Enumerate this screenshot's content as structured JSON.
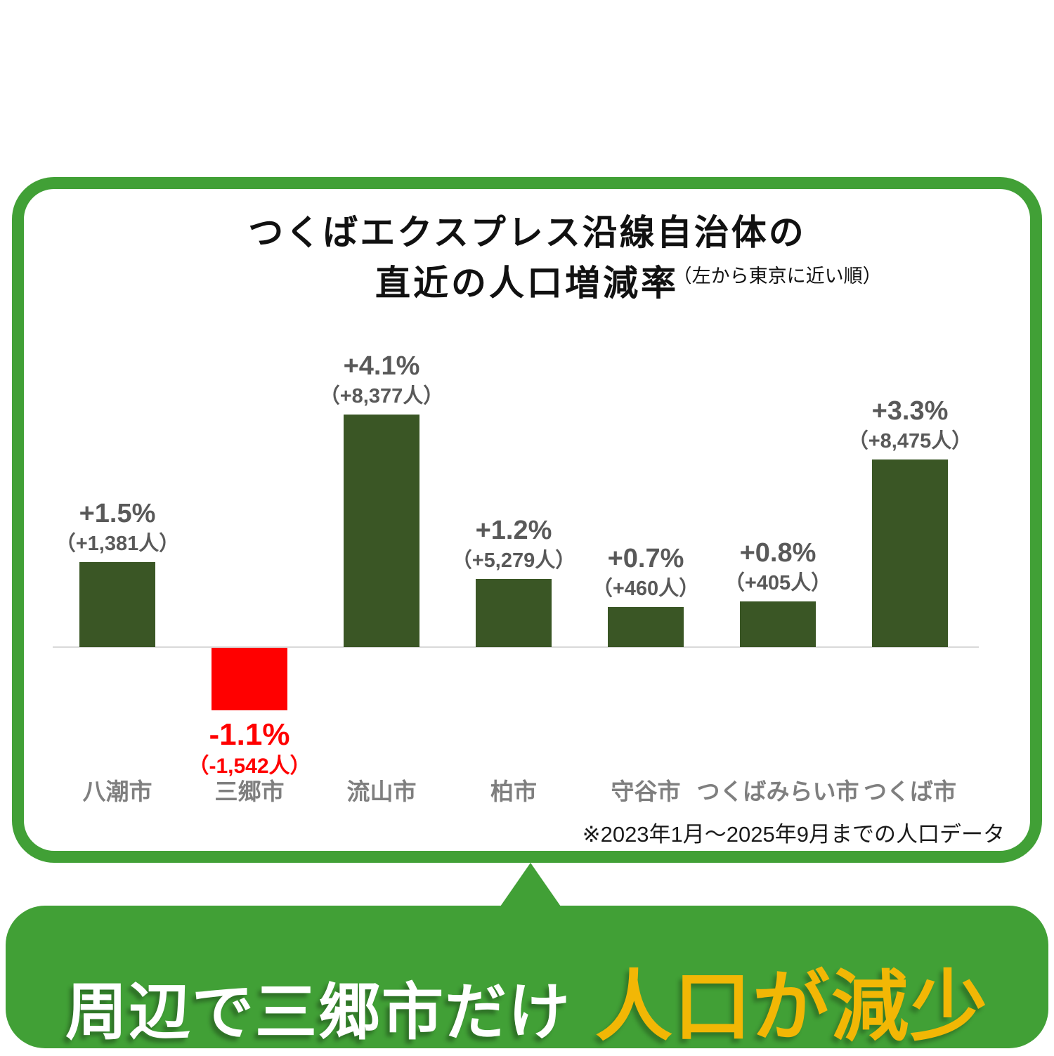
{
  "card": {
    "title_line1": "つくばエクスプレス沿線自治体の",
    "title_line2": "直近の人口増減率",
    "title_note": "（左から東京に近い順）",
    "footnote": "※2023年1月～2025年9月までの人口データ"
  },
  "banner": {
    "text_white": "周辺で三郷市だけ",
    "text_yellow": "人口が減少"
  },
  "colors": {
    "frame_green": "#41A036",
    "bar_green": "#3A5625",
    "bar_red": "#FF0000",
    "value_label_gray": "#595959",
    "city_label_gray": "#7F7F7F",
    "banner_yellow": "#F2B705",
    "axis_gray": "#D9D9D9"
  },
  "chart_data": {
    "type": "bar",
    "title": "つくばエクスプレス沿線自治体の直近の人口増減率",
    "subtitle": "（左から東京に近い順）",
    "categories": [
      "八潮市",
      "三郷市",
      "流山市",
      "柏市",
      "守谷市",
      "つくばみらい市",
      "つくば市"
    ],
    "values": [
      1.5,
      -1.1,
      4.1,
      1.2,
      0.7,
      0.8,
      3.3
    ],
    "value_labels": [
      "+1.5%",
      "-1.1%",
      "+4.1%",
      "+1.2%",
      "+0.7%",
      "+0.8%",
      "+3.3%"
    ],
    "count_labels": [
      "（+1,381人）",
      "（-1,542人）",
      "（+8,377人）",
      "（+5,279人）",
      "（+460人）",
      "（+405人）",
      "（+8,475人）"
    ],
    "xlabel": "",
    "ylabel": "",
    "ylim": [
      -2,
      5
    ],
    "grid": false,
    "legend": false,
    "bar_color_positive": "#3A5625",
    "bar_color_negative": "#FF0000",
    "footnote": "※2023年1月～2025年9月までの人口データ"
  }
}
